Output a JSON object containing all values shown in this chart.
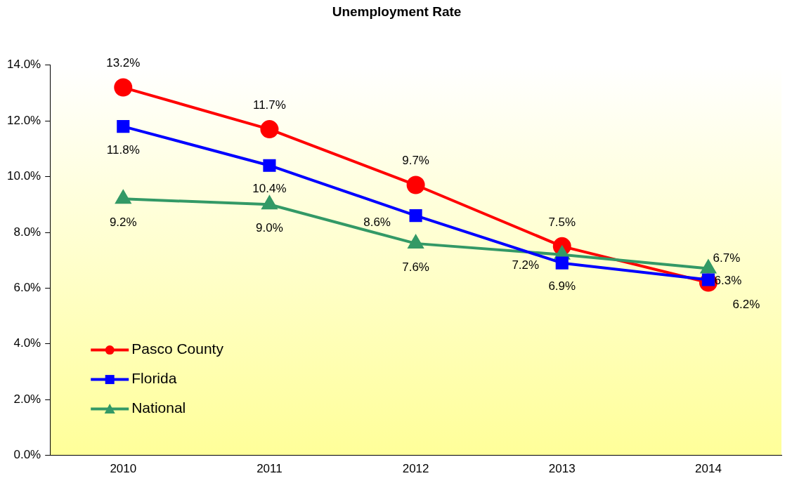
{
  "chart_data": {
    "type": "line",
    "title": "Unemployment Rate",
    "categories": [
      "2010",
      "2011",
      "2012",
      "2013",
      "2014"
    ],
    "series": [
      {
        "name": "Pasco County",
        "color": "#ff0000",
        "marker": "circle",
        "values": [
          13.2,
          11.7,
          9.7,
          7.5,
          6.2
        ],
        "value_labels": [
          "13.2%",
          "11.7%",
          "9.7%",
          "7.5%",
          "6.2%"
        ]
      },
      {
        "name": "Florida",
        "color": "#0000ff",
        "marker": "square",
        "values": [
          11.8,
          10.4,
          8.6,
          6.9,
          6.3
        ],
        "value_labels": [
          "11.8%",
          "10.4%",
          "8.6%",
          "6.9%",
          "6.3%"
        ]
      },
      {
        "name": "National",
        "color": "#339966",
        "marker": "triangle",
        "values": [
          9.2,
          9.0,
          7.6,
          7.2,
          6.7
        ],
        "value_labels": [
          "9.2%",
          "9.0%",
          "7.6%",
          "7.2%",
          "6.7%"
        ]
      }
    ],
    "ylim": [
      0,
      14
    ],
    "yticks": [
      {
        "value": 0,
        "label": "0.0%"
      },
      {
        "value": 2,
        "label": "2.0%"
      },
      {
        "value": 4,
        "label": "4.0%"
      },
      {
        "value": 6,
        "label": "6.0%"
      },
      {
        "value": 8,
        "label": "8.0%"
      },
      {
        "value": 10,
        "label": "10.0%"
      },
      {
        "value": 12,
        "label": "12.0%"
      },
      {
        "value": 14,
        "label": "14.0%"
      }
    ],
    "grid": false,
    "legend": "bottom left",
    "line_style": "solid"
  }
}
